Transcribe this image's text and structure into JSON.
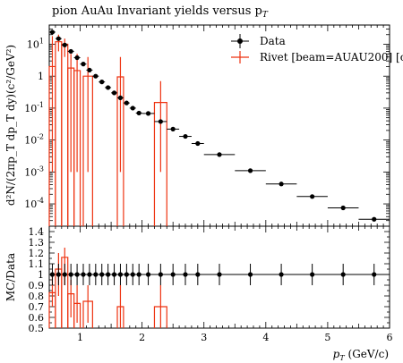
{
  "chart_data": {
    "type": "scatter",
    "title": "pion AuAu Invariant yields versus p",
    "title_sub": "T",
    "xlabel": "p",
    "xlabel_sub": "T",
    "xlabel_unit": " (GeV/c)",
    "ylabel": "d²N/(2πp_T dp_T dy)(c²/GeV²)",
    "ylabel_ratio": "MC/Data",
    "xlim": [
      0.5,
      6.0
    ],
    "ylim": [
      2e-05,
      40
    ],
    "yscale": "log",
    "ratio_ylim": [
      0.5,
      1.45
    ],
    "x_ticks": [
      "1",
      "2",
      "3",
      "4",
      "5",
      "6"
    ],
    "y_ticks": [
      "10^1",
      "1",
      "10^-1",
      "10^-2",
      "10^-3",
      "10^-4"
    ],
    "ratio_ticks": [
      "1.4",
      "1.3",
      "1.2",
      "1.1",
      "1",
      "0.9",
      "0.8",
      "0.7",
      "0.6",
      "0.5"
    ],
    "legend": {
      "position": "top-right",
      "data_label": "Data",
      "mc_label": "Rivet [beam=AUAU200] [c"
    },
    "colors": {
      "data": "#000000",
      "mc": "#ee3311"
    },
    "data_points": [
      {
        "x": 0.55,
        "xlo": 0.5,
        "xhi": 0.6,
        "y": 24
      },
      {
        "x": 0.65,
        "xlo": 0.6,
        "xhi": 0.7,
        "y": 15
      },
      {
        "x": 0.75,
        "xlo": 0.7,
        "xhi": 0.8,
        "y": 9.5
      },
      {
        "x": 0.85,
        "xlo": 0.8,
        "xhi": 0.9,
        "y": 6.0
      },
      {
        "x": 0.95,
        "xlo": 0.9,
        "xhi": 1.0,
        "y": 3.8
      },
      {
        "x": 1.05,
        "xlo": 1.0,
        "xhi": 1.1,
        "y": 2.4
      },
      {
        "x": 1.15,
        "xlo": 1.1,
        "xhi": 1.2,
        "y": 1.55
      },
      {
        "x": 1.25,
        "xlo": 1.2,
        "xhi": 1.3,
        "y": 1.0
      },
      {
        "x": 1.35,
        "xlo": 1.3,
        "xhi": 1.4,
        "y": 0.66
      },
      {
        "x": 1.45,
        "xlo": 1.4,
        "xhi": 1.5,
        "y": 0.44
      },
      {
        "x": 1.55,
        "xlo": 1.5,
        "xhi": 1.6,
        "y": 0.3
      },
      {
        "x": 1.65,
        "xlo": 1.6,
        "xhi": 1.7,
        "y": 0.21
      },
      {
        "x": 1.75,
        "xlo": 1.7,
        "xhi": 1.8,
        "y": 0.145
      },
      {
        "x": 1.85,
        "xlo": 1.8,
        "xhi": 1.9,
        "y": 0.1
      },
      {
        "x": 1.95,
        "xlo": 1.9,
        "xhi": 2.0,
        "y": 0.07
      },
      {
        "x": 2.1,
        "xlo": 2.0,
        "xhi": 2.2,
        "y": 0.068
      },
      {
        "x": 2.3,
        "xlo": 2.2,
        "xhi": 2.4,
        "y": 0.038
      },
      {
        "x": 2.5,
        "xlo": 2.4,
        "xhi": 2.6,
        "y": 0.022
      },
      {
        "x": 2.7,
        "xlo": 2.6,
        "xhi": 2.8,
        "y": 0.013
      },
      {
        "x": 2.9,
        "xlo": 2.8,
        "xhi": 3.0,
        "y": 0.0078
      },
      {
        "x": 3.25,
        "xlo": 3.0,
        "xhi": 3.5,
        "y": 0.0035
      },
      {
        "x": 3.75,
        "xlo": 3.5,
        "xhi": 4.0,
        "y": 0.0011
      },
      {
        "x": 4.25,
        "xlo": 4.0,
        "xhi": 4.5,
        "y": 0.00042
      },
      {
        "x": 4.75,
        "xlo": 4.5,
        "xhi": 5.0,
        "y": 0.00017
      },
      {
        "x": 5.25,
        "xlo": 5.0,
        "xhi": 5.5,
        "y": 7.5e-05
      },
      {
        "x": 5.75,
        "xlo": 5.5,
        "xhi": 6.0,
        "y": 3.3e-05
      }
    ],
    "data_ratio_errors": [
      {
        "x": 0.55,
        "err": 0.1
      },
      {
        "x": 0.65,
        "err": 0.1
      },
      {
        "x": 0.75,
        "err": 0.1
      },
      {
        "x": 0.85,
        "err": 0.1
      },
      {
        "x": 0.95,
        "err": 0.1
      },
      {
        "x": 1.05,
        "err": 0.1
      },
      {
        "x": 1.15,
        "err": 0.1
      },
      {
        "x": 1.25,
        "err": 0.1
      },
      {
        "x": 1.35,
        "err": 0.1
      },
      {
        "x": 1.45,
        "err": 0.1
      },
      {
        "x": 1.55,
        "err": 0.1
      },
      {
        "x": 1.65,
        "err": 0.1
      },
      {
        "x": 1.75,
        "err": 0.1
      },
      {
        "x": 1.85,
        "err": 0.1
      },
      {
        "x": 1.95,
        "err": 0.1
      },
      {
        "x": 2.1,
        "err": 0.1
      },
      {
        "x": 2.3,
        "err": 0.1
      },
      {
        "x": 2.5,
        "err": 0.1
      },
      {
        "x": 2.7,
        "err": 0.1
      },
      {
        "x": 2.9,
        "err": 0.1
      },
      {
        "x": 3.25,
        "err": 0.1
      },
      {
        "x": 3.75,
        "err": 0.1
      },
      {
        "x": 4.25,
        "err": 0.1
      },
      {
        "x": 4.75,
        "err": 0.1
      },
      {
        "x": 5.25,
        "err": 0.1
      },
      {
        "x": 5.75,
        "err": 0.1
      }
    ],
    "mc_bins": [
      {
        "xlo": 0.5,
        "xhi": 0.6,
        "y": 2.0,
        "ylo": 0.001,
        "yhi": 18,
        "ratio": 0.83,
        "rlo": 0.7,
        "rhi": 0.99
      },
      {
        "xlo": 0.6,
        "xhi": 0.7,
        "y": 12,
        "ylo": 6,
        "yhi": 20,
        "ratio": 1.05,
        "rlo": 0.8,
        "rhi": 1.2
      },
      {
        "xlo": 0.7,
        "xhi": 0.8,
        "y": 10,
        "ylo": 4,
        "yhi": 15,
        "ratio": 1.16,
        "rlo": 0.9,
        "rhi": 1.25
      },
      {
        "xlo": 0.8,
        "xhi": 0.9,
        "y": 1.8,
        "ylo": 0.001,
        "yhi": 5,
        "ratio": 0.82,
        "rlo": 0.6,
        "rhi": 0.95
      },
      {
        "xlo": 0.9,
        "xhi": 1.0,
        "y": 1.5,
        "ylo": 0.001,
        "yhi": 5,
        "ratio": 0.73,
        "rlo": 0.55,
        "rhi": 0.9
      },
      {
        "xlo": 1.05,
        "xhi": 1.2,
        "y": 1.0,
        "ylo": 0.001,
        "yhi": 4,
        "ratio": 0.75,
        "rlo": 0.55,
        "rhi": 0.9
      },
      {
        "xlo": 1.6,
        "xhi": 1.7,
        "y": 0.95,
        "ylo": 0.001,
        "yhi": 4,
        "ratio": 0.7,
        "rlo": 0.5,
        "rhi": 0.9
      },
      {
        "xlo": 2.2,
        "xhi": 2.4,
        "y": 0.15,
        "ylo": 0.001,
        "yhi": 0.7,
        "ratio": 0.7,
        "rlo": 0.5,
        "rhi": 0.9
      }
    ]
  }
}
